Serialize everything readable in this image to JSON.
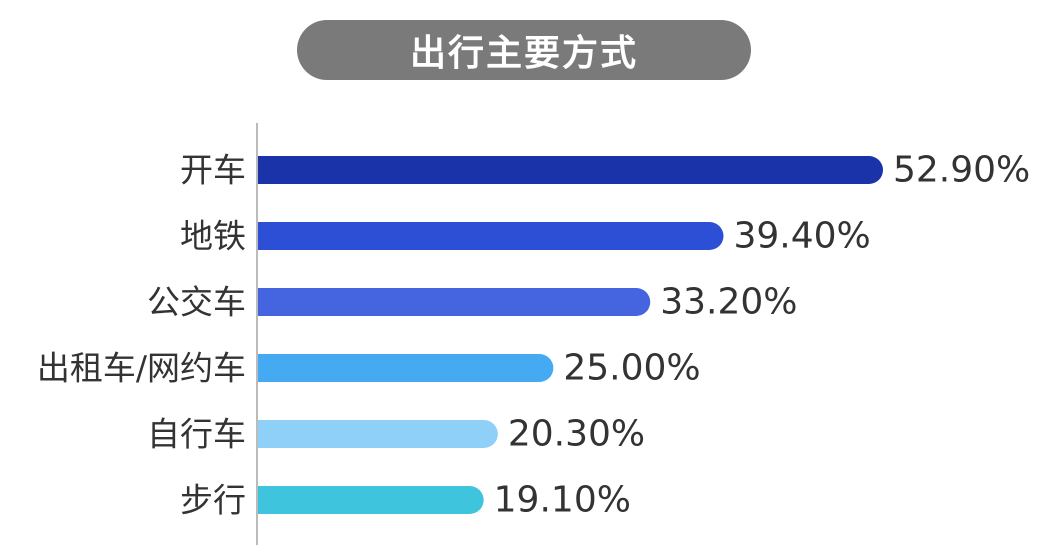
{
  "chart_data": {
    "type": "bar",
    "orientation": "horizontal",
    "title": "出行主要方式",
    "categories": [
      "开车",
      "地铁",
      "公交车",
      "出租车/网约车",
      "自行车",
      "步行"
    ],
    "values": [
      52.9,
      39.4,
      33.2,
      25.0,
      20.3,
      19.1
    ],
    "value_labels": [
      "52.90%",
      "39.40%",
      "33.20%",
      "25.00%",
      "20.30%",
      "19.10%"
    ],
    "colors": [
      "#1a33a8",
      "#2d4fd6",
      "#4565e0",
      "#45aaf2",
      "#8fd0f8",
      "#3ec4dd"
    ],
    "xlim": [
      0,
      52.9
    ],
    "grid": false,
    "legend": "none"
  }
}
